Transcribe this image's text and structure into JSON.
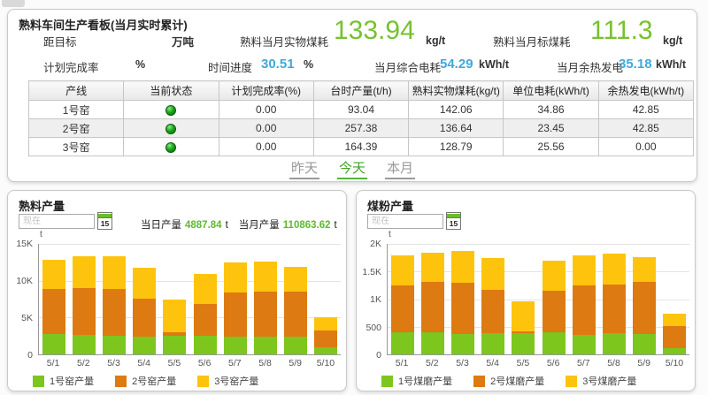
{
  "top_panel": {
    "title": "熟料车间生产看板(当月实时累计)",
    "metrics": {
      "row1": [
        {
          "label": "距目标",
          "value": "",
          "unit": "万吨"
        },
        {
          "label": "熟料当月实物煤耗",
          "value": "133.94",
          "unit": "kg/t"
        },
        {
          "label": "熟料当月标煤耗",
          "value": "111.3",
          "unit": "kg/t"
        }
      ],
      "row2": [
        {
          "label": "计划完成率",
          "value": "",
          "unit": "%"
        },
        {
          "label": "时间进度",
          "value": "30.51",
          "unit": "%"
        },
        {
          "label": "当月综合电耗",
          "value": "54.29",
          "unit": "kWh/t"
        },
        {
          "label": "当月余热发电",
          "value": "35.18",
          "unit": "kWh/t"
        }
      ]
    },
    "table": {
      "headers": [
        "产线",
        "当前状态",
        "计划完成率(%)",
        "台时产量(t/h)",
        "熟料实物煤耗(kg/t)",
        "单位电耗(kWh/t)",
        "余热发电(kWh/t)"
      ],
      "rows": [
        {
          "line": "1号窑",
          "status": "running-green",
          "values": [
            "0.00",
            "93.04",
            "142.06",
            "34.86",
            "42.85"
          ]
        },
        {
          "line": "2号窑",
          "status": "running-green",
          "values": [
            "0.00",
            "257.38",
            "136.64",
            "23.45",
            "42.85"
          ]
        },
        {
          "line": "3号窑",
          "status": "running-green",
          "values": [
            "0.00",
            "164.39",
            "128.79",
            "25.56",
            "0.00"
          ]
        }
      ]
    },
    "tabs": [
      "昨天",
      "今天",
      "本月"
    ],
    "active_tab": "今天"
  },
  "colors": {
    "value_green": "#76c22e",
    "value_blue": "#3fa9dc",
    "tab_active_green": "#3fa428",
    "bar_green": "#7cc61e",
    "bar_orange": "#dd7a12",
    "bar_yellow": "#fec40d"
  },
  "chart_data": [
    {
      "type": "bar",
      "stacked": true,
      "title": "熟料产量",
      "unit": "t",
      "date_placeholder": "现在",
      "calendar_day": "15",
      "header": {
        "daily_label": "当日产量",
        "daily_value": "4887.84",
        "daily_unit": "t",
        "monthly_label": "当月产量",
        "monthly_value": "110863.62",
        "monthly_unit": "t"
      },
      "categories": [
        "5/1",
        "5/2",
        "5/3",
        "5/4",
        "5/5",
        "5/6",
        "5/7",
        "5/8",
        "5/9",
        "5/10"
      ],
      "series": [
        {
          "name": "1号窑产量",
          "color": "#7cc61e",
          "values": [
            2800,
            2600,
            2500,
            2450,
            2500,
            2550,
            2400,
            2450,
            2400,
            950
          ]
        },
        {
          "name": "2号窑产量",
          "color": "#dd7a12",
          "values": [
            6100,
            6450,
            6400,
            5150,
            550,
            4250,
            6050,
            6100,
            6150,
            2300
          ]
        },
        {
          "name": "3号窑产量",
          "color": "#fec40d",
          "values": [
            4000,
            4250,
            4450,
            4200,
            4450,
            4150,
            4050,
            4050,
            3350,
            1750
          ]
        }
      ],
      "ylim": [
        0,
        15000
      ],
      "yticks": [
        "0",
        "5K",
        "10K",
        "15K"
      ],
      "grid": true,
      "legend_position": "bottom"
    },
    {
      "type": "bar",
      "stacked": true,
      "title": "煤粉产量",
      "unit": "t",
      "date_placeholder": "现在",
      "calendar_day": "15",
      "categories": [
        "5/1",
        "5/2",
        "5/3",
        "5/4",
        "5/5",
        "5/6",
        "5/7",
        "5/8",
        "5/9",
        "5/10"
      ],
      "series": [
        {
          "name": "1号煤磨产量",
          "color": "#7cc61e",
          "values": [
            400,
            400,
            365,
            380,
            380,
            400,
            350,
            390,
            370,
            120
          ]
        },
        {
          "name": "2号煤磨产量",
          "color": "#dd7a12",
          "values": [
            850,
            910,
            930,
            795,
            40,
            760,
            900,
            875,
            945,
            390
          ]
        },
        {
          "name": "3号煤磨产量",
          "color": "#fec40d",
          "values": [
            540,
            530,
            570,
            570,
            545,
            540,
            540,
            560,
            445,
            230
          ]
        }
      ],
      "ylim": [
        0,
        2000
      ],
      "yticks": [
        "0",
        "500",
        "1K",
        "1.5K",
        "2K"
      ],
      "grid": true,
      "legend_position": "bottom"
    }
  ]
}
